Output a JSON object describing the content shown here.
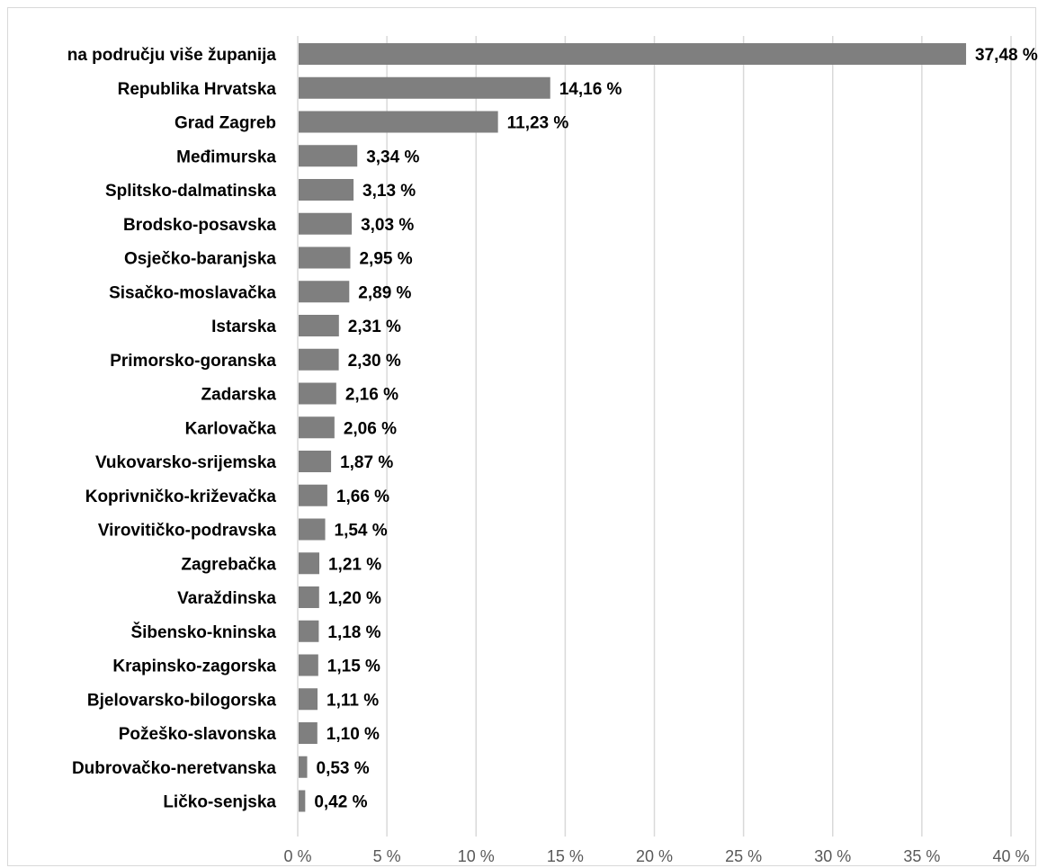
{
  "colors": {
    "bar": "#7f7f7f",
    "grid": "#d9d9d9",
    "tick_text": "#595959",
    "label_text": "#000000"
  },
  "chart_data": {
    "type": "bar",
    "orientation": "horizontal",
    "title": "",
    "xlabel": "",
    "ylabel": "",
    "xlim": [
      0,
      40
    ],
    "x_ticks": [
      "0 %",
      "5 %",
      "10 %",
      "15 %",
      "20 %",
      "25 %",
      "30 %",
      "35 %",
      "40 %"
    ],
    "grid": true,
    "categories": [
      "na području više županija",
      "Republika Hrvatska",
      "Grad Zagreb",
      "Međimurska",
      "Splitsko-dalmatinska",
      "Brodsko-posavska",
      "Osječko-baranjska",
      "Sisačko-moslavačka",
      "Istarska",
      "Primorsko-goranska",
      "Zadarska",
      "Karlovačka",
      "Vukovarsko-srijemska",
      "Koprivničko-križevačka",
      "Virovitičko-podravska",
      "Zagrebačka",
      "Varaždinska",
      "Šibensko-kninska",
      "Krapinsko-zagorska",
      "Bjelovarsko-bilogorska",
      "Požeško-slavonska",
      "Dubrovačko-neretvanska",
      "Ličko-senjska"
    ],
    "values": [
      37.48,
      14.16,
      11.23,
      3.34,
      3.13,
      3.03,
      2.95,
      2.89,
      2.31,
      2.3,
      2.16,
      2.06,
      1.87,
      1.66,
      1.54,
      1.21,
      1.2,
      1.18,
      1.15,
      1.11,
      1.1,
      0.53,
      0.42
    ],
    "value_labels": [
      "37,48 %",
      "14,16 %",
      "11,23 %",
      "3,34 %",
      "3,13 %",
      "3,03 %",
      "2,95 %",
      "2,89 %",
      "2,31 %",
      "2,30 %",
      "2,16 %",
      "2,06 %",
      "1,87 %",
      "1,66 %",
      "1,54 %",
      "1,21 %",
      "1,20 %",
      "1,18 %",
      "1,15 %",
      "1,11 %",
      "1,10 %",
      "0,53 %",
      "0,42 %"
    ]
  }
}
